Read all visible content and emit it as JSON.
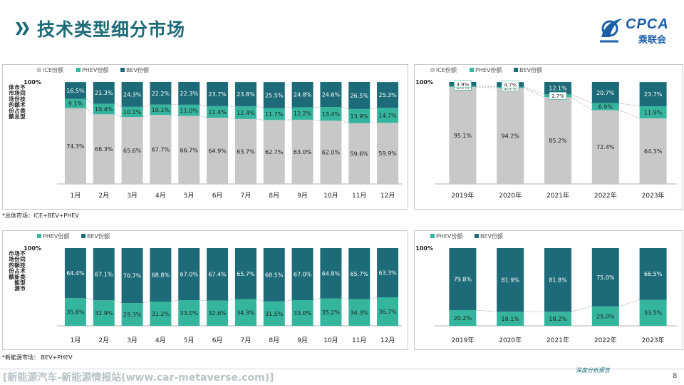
{
  "header": {
    "title": "技术类型细分市场",
    "logo_text": "CPCA",
    "logo_subtext": "乘联会"
  },
  "colors": {
    "ice": "#c8c8c8",
    "phev": "#35b59e",
    "bev": "#1d6b78",
    "accent": "#1d6b78"
  },
  "notes": {
    "top": "*总体市场：ICE+BEV+PHEV",
    "bottom": "*新能源市场： BEV+PHEV"
  },
  "footer": {
    "watermark": "[新能源汽车-新能源情报站(www.car-metaverse.com)]",
    "tagline": "深度分析报告",
    "page_number": "8"
  },
  "chart_data": [
    {
      "type": "bar",
      "stacked": true,
      "ylabel": "不同技术类型市场份额占总体市场的份额",
      "ytick": "100%",
      "categories": [
        "1月",
        "2月",
        "3月",
        "4月",
        "5月",
        "6月",
        "7月",
        "8月",
        "9月",
        "10月",
        "11月",
        "12月"
      ],
      "series": [
        {
          "name": "ICE份额",
          "color": "#c8c8c8",
          "values": [
            "74.3%",
            "68.3%",
            "65.6%",
            "67.7%",
            "66.7%",
            "64.9%",
            "63.7%",
            "62.7%",
            "63.0%",
            "62.0%",
            "59.6%",
            "59.9%"
          ]
        },
        {
          "name": "PHEV份额",
          "color": "#35b59e",
          "values": [
            "9.1%",
            "10.4%",
            "10.1%",
            "10.1%",
            "11.0%",
            "11.4%",
            "12.4%",
            "11.7%",
            "12.2%",
            "13.4%",
            "13.9%",
            "14.7%"
          ]
        },
        {
          "name": "BEV份额",
          "color": "#1d6b78",
          "values": [
            "16.5%",
            "21.3%",
            "24.3%",
            "22.2%",
            "22.3%",
            "23.7%",
            "23.8%",
            "25.5%",
            "24.8%",
            "24.6%",
            "26.5%",
            "25.3%"
          ]
        }
      ],
      "legend_position": "top-left",
      "connector_lines": true
    },
    {
      "type": "bar",
      "stacked": true,
      "ytick": "100%",
      "categories": [
        "2019年",
        "2020年",
        "2021年",
        "2022年",
        "2023年"
      ],
      "series": [
        {
          "name": "ICE份额",
          "color": "#c8c8c8",
          "values": [
            "95.1%",
            "94.2%",
            "85.2%",
            "72.4%",
            "64.3%"
          ]
        },
        {
          "name": "PHEV份额",
          "color": "#35b59e",
          "values": [
            "1.0%",
            "1.0%",
            "2.7%",
            "6.9%",
            "11.9%"
          ]
        },
        {
          "name": "BEV份额",
          "color": "#1d6b78",
          "values": [
            "3.9%",
            "4.7%",
            "12.1%",
            "20.7%",
            "23.7%"
          ]
        }
      ],
      "legend_position": "top-left",
      "connector_lines": true
    },
    {
      "type": "bar",
      "stacked": true,
      "ylabel": "不同技术类型市场份额占新能源市场的份额",
      "ytick": "100%",
      "categories": [
        "1月",
        "2月",
        "3月",
        "4月",
        "5月",
        "6月",
        "7月",
        "8月",
        "9月",
        "10月",
        "11月",
        "12月"
      ],
      "series": [
        {
          "name": "PHEV份额",
          "color": "#35b59e",
          "values": [
            "35.6%",
            "32.9%",
            "29.3%",
            "31.2%",
            "33.0%",
            "32.6%",
            "34.3%",
            "31.5%",
            "33.0%",
            "35.2%",
            "34.3%",
            "36.7%"
          ]
        },
        {
          "name": "BEV份额",
          "color": "#1d6b78",
          "values": [
            "64.4%",
            "67.1%",
            "70.7%",
            "68.8%",
            "67.0%",
            "67.4%",
            "65.7%",
            "68.5%",
            "67.0%",
            "64.8%",
            "65.7%",
            "63.3%"
          ]
        }
      ],
      "legend_position": "top-left",
      "connector_lines": true
    },
    {
      "type": "bar",
      "stacked": true,
      "ytick": "100%",
      "categories": [
        "2019年",
        "2020年",
        "2021年",
        "2022年",
        "2023年"
      ],
      "series": [
        {
          "name": "PHEV份额",
          "color": "#35b59e",
          "values": [
            "20.2%",
            "18.1%",
            "18.2%",
            "25.0%",
            "33.5%"
          ]
        },
        {
          "name": "BEV份额",
          "color": "#1d6b78",
          "values": [
            "79.8%",
            "81.9%",
            "81.8%",
            "75.0%",
            "66.5%"
          ]
        }
      ],
      "legend_position": "top-left",
      "connector_lines": true
    }
  ]
}
